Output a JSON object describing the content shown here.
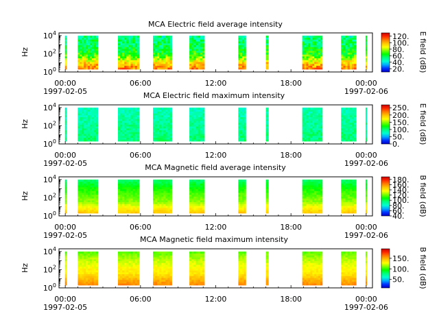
{
  "colorscale": [
    "#0000c8",
    "#0032ff",
    "#00aaff",
    "#00ffd0",
    "#00ff7f",
    "#00ff00",
    "#7fff00",
    "#ffff00",
    "#ffc800",
    "#ff7f00",
    "#ff2a00",
    "#c80000"
  ],
  "chart_data": [
    {
      "type": "heatmap",
      "title": "MCA  Electric field average intensity",
      "ylabel": "Hz",
      "colorbar_label": "E field (dB)",
      "colorbar_range": [
        10,
        130
      ],
      "colorbar_ticks": [
        "120.",
        "100.",
        "80.",
        "60.",
        "40.",
        "20."
      ],
      "colorbar_tick_values": [
        120,
        100,
        80,
        60,
        40,
        20
      ],
      "xlim_hours": [
        -0.5,
        24.5
      ],
      "ylim_log10": [
        0,
        4.3
      ],
      "y_ticks": [
        {
          "base": "10",
          "exp": "0",
          "value": 0
        },
        {
          "base": "10",
          "exp": "2",
          "value": 2
        },
        {
          "base": "10",
          "exp": "4",
          "value": 4
        }
      ],
      "x_ticks": [
        {
          "hour": 0,
          "label": "00:00",
          "date": "1997-02-05"
        },
        {
          "hour": 6,
          "label": "06:00",
          "date": ""
        },
        {
          "hour": 12,
          "label": "12:00",
          "date": ""
        },
        {
          "hour": 18,
          "label": "18:00",
          "date": ""
        },
        {
          "hour": 24,
          "label": "00:00",
          "date": "1997-02-06"
        }
      ],
      "data_blocks_hours": [
        [
          -0.02,
          0.1
        ],
        [
          1.0,
          2.6
        ],
        [
          4.2,
          5.9
        ],
        [
          7.0,
          8.5
        ],
        [
          9.9,
          11.1
        ],
        [
          13.8,
          14.4
        ],
        [
          16.0,
          16.2
        ],
        [
          18.9,
          20.5
        ],
        [
          22.0,
          23.2
        ],
        [
          23.95,
          24.05
        ]
      ],
      "freq_range_log10": [
        0.3,
        4.0
      ],
      "value_profile": [
        [
          0.3,
          110
        ],
        [
          0.8,
          100
        ],
        [
          1.3,
          85
        ],
        [
          1.8,
          70
        ],
        [
          2.3,
          62
        ],
        [
          2.8,
          58
        ],
        [
          3.3,
          56
        ],
        [
          3.8,
          52
        ],
        [
          4.0,
          50
        ]
      ],
      "variability": 12
    },
    {
      "type": "heatmap",
      "title": "MCA  Electric field maximum intensity",
      "ylabel": "Hz",
      "colorbar_label": "E field (dB)",
      "colorbar_range": [
        0,
        270
      ],
      "colorbar_ticks": [
        "250.",
        "200.",
        "150.",
        "100.",
        "50.",
        "0."
      ],
      "colorbar_tick_values": [
        250,
        200,
        150,
        100,
        50,
        0
      ],
      "xlim_hours": [
        -0.5,
        24.5
      ],
      "ylim_log10": [
        0,
        4.3
      ],
      "y_ticks": [
        {
          "base": "10",
          "exp": "0",
          "value": 0
        },
        {
          "base": "10",
          "exp": "2",
          "value": 2
        },
        {
          "base": "10",
          "exp": "4",
          "value": 4
        }
      ],
      "x_ticks": [
        {
          "hour": 0,
          "label": "00:00",
          "date": "1997-02-05"
        },
        {
          "hour": 6,
          "label": "06:00",
          "date": ""
        },
        {
          "hour": 12,
          "label": "12:00",
          "date": ""
        },
        {
          "hour": 18,
          "label": "18:00",
          "date": ""
        },
        {
          "hour": 24,
          "label": "00:00",
          "date": "1997-02-06"
        }
      ],
      "data_blocks_hours": [
        [
          -0.02,
          0.1
        ],
        [
          1.0,
          2.6
        ],
        [
          4.2,
          5.9
        ],
        [
          7.0,
          8.5
        ],
        [
          9.9,
          11.1
        ],
        [
          13.8,
          14.4
        ],
        [
          16.0,
          16.2
        ],
        [
          18.9,
          20.5
        ],
        [
          22.0,
          23.2
        ],
        [
          23.95,
          24.05
        ]
      ],
      "freq_range_log10": [
        0.3,
        4.0
      ],
      "value_profile": [
        [
          0.3,
          100
        ],
        [
          1.5,
          95
        ],
        [
          2.5,
          90
        ],
        [
          3.5,
          85
        ],
        [
          4.0,
          80
        ]
      ],
      "variability": 14
    },
    {
      "type": "heatmap",
      "title": "MCA  Magnetic field average intensity",
      "ylabel": "Hz",
      "colorbar_label": "B field (dB)",
      "colorbar_range": [
        40,
        190
      ],
      "colorbar_ticks": [
        "180.",
        "160.",
        "140.",
        "120.",
        "100.",
        "80.",
        "60.",
        "40."
      ],
      "colorbar_tick_values": [
        180,
        160,
        140,
        120,
        100,
        80,
        60,
        40
      ],
      "xlim_hours": [
        -0.5,
        24.5
      ],
      "ylim_log10": [
        0,
        4.3
      ],
      "y_ticks": [
        {
          "base": "10",
          "exp": "0",
          "value": 0
        },
        {
          "base": "10",
          "exp": "2",
          "value": 2
        },
        {
          "base": "10",
          "exp": "4",
          "value": 4
        }
      ],
      "x_ticks": [
        {
          "hour": 0,
          "label": "00:00",
          "date": "1997-02-05"
        },
        {
          "hour": 6,
          "label": "06:00",
          "date": ""
        },
        {
          "hour": 12,
          "label": "12:00",
          "date": ""
        },
        {
          "hour": 18,
          "label": "18:00",
          "date": ""
        },
        {
          "hour": 24,
          "label": "00:00",
          "date": "1997-02-06"
        }
      ],
      "data_blocks_hours": [
        [
          -0.02,
          0.1
        ],
        [
          1.0,
          2.6
        ],
        [
          4.2,
          5.9
        ],
        [
          7.0,
          8.5
        ],
        [
          9.9,
          11.1
        ],
        [
          13.8,
          14.4
        ],
        [
          16.0,
          16.2
        ],
        [
          18.9,
          20.5
        ],
        [
          22.0,
          23.2
        ],
        [
          23.95,
          24.05
        ]
      ],
      "freq_range_log10": [
        0.3,
        4.0
      ],
      "value_profile": [
        [
          0.3,
          150
        ],
        [
          0.8,
          140
        ],
        [
          1.5,
          125
        ],
        [
          2.2,
          118
        ],
        [
          2.8,
          112
        ],
        [
          3.4,
          105
        ],
        [
          4.0,
          96
        ]
      ],
      "variability": 4
    },
    {
      "type": "heatmap",
      "title": "MCA  Magnetic field maximum intensity",
      "ylabel": "Hz",
      "colorbar_label": "B field (dB)",
      "colorbar_range": [
        10,
        195
      ],
      "colorbar_ticks": [
        "150.",
        "100.",
        "50."
      ],
      "colorbar_tick_values": [
        150,
        100,
        50
      ],
      "xlim_hours": [
        -0.5,
        24.5
      ],
      "ylim_log10": [
        0,
        4.3
      ],
      "y_ticks": [
        {
          "base": "10",
          "exp": "0",
          "value": 0
        },
        {
          "base": "10",
          "exp": "2",
          "value": 2
        },
        {
          "base": "10",
          "exp": "4",
          "value": 4
        }
      ],
      "x_ticks": [
        {
          "hour": 0,
          "label": "00:00",
          "date": "1997-02-05"
        },
        {
          "hour": 6,
          "label": "06:00",
          "date": ""
        },
        {
          "hour": 12,
          "label": "12:00",
          "date": ""
        },
        {
          "hour": 18,
          "label": "18:00",
          "date": ""
        },
        {
          "hour": 24,
          "label": "00:00",
          "date": "1997-02-06"
        }
      ],
      "data_blocks_hours": [
        [
          -0.02,
          0.1
        ],
        [
          1.0,
          2.6
        ],
        [
          4.2,
          5.9
        ],
        [
          7.0,
          8.5
        ],
        [
          9.9,
          11.1
        ],
        [
          13.8,
          14.4
        ],
        [
          16.0,
          16.2
        ],
        [
          18.9,
          20.5
        ],
        [
          22.0,
          23.2
        ],
        [
          23.95,
          24.05
        ]
      ],
      "freq_range_log10": [
        0.3,
        4.0
      ],
      "value_profile": [
        [
          0.3,
          160
        ],
        [
          0.9,
          150
        ],
        [
          1.6,
          135
        ],
        [
          2.3,
          128
        ],
        [
          3.0,
          120
        ],
        [
          3.6,
          112
        ],
        [
          4.0,
          105
        ]
      ],
      "variability": 5
    }
  ]
}
